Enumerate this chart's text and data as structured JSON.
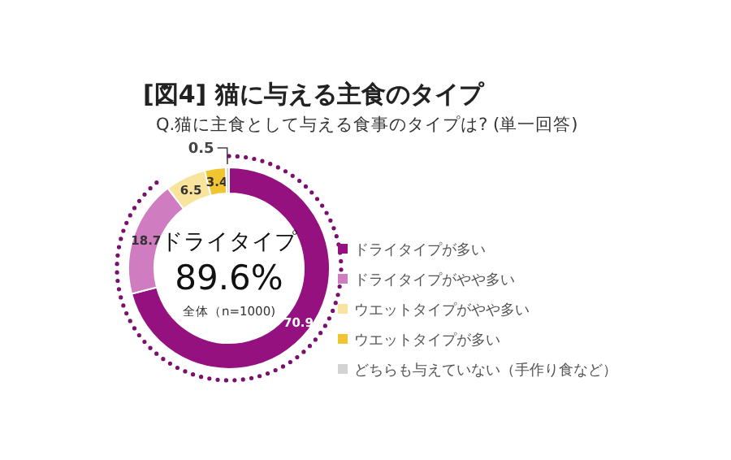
{
  "chart_data": {
    "type": "donut",
    "title": "[図4]  猫に与える主食のタイプ",
    "subtitle": "Q.猫に主食として与える食事のタイプは?  (単一回答)",
    "categories": [
      "ドライタイプが多い",
      "ドライタイプがやや多い",
      "ウエットタイプがやや多い",
      "ウエットタイプが多い",
      "どちらも与えていない（手作り食など）"
    ],
    "values": [
      70.9,
      18.7,
      6.5,
      3.4,
      0.5
    ],
    "colors": [
      "#94117f",
      "#d07cc0",
      "#f8e49c",
      "#f0c530",
      "#d3d3d3"
    ],
    "data_labels": true,
    "legend": "right",
    "annotations": [
      "ドライタイプ",
      "89.6%",
      "全体（n=1000)"
    ]
  }
}
